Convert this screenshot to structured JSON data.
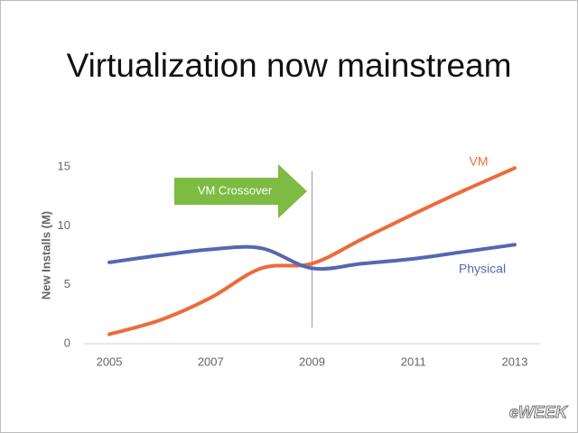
{
  "chart_data": {
    "type": "line",
    "title": "Virtualization now mainstream",
    "y_label": "New Installs (M)",
    "x": [
      2005,
      2006,
      2007,
      2008,
      2009,
      2010,
      2011,
      2012,
      2013
    ],
    "series": [
      {
        "name": "VM",
        "color": "#ed6a3c",
        "values": [
          0.8,
          2,
          3.9,
          6.4,
          6.8,
          8.9,
          11,
          13,
          14.9
        ]
      },
      {
        "name": "Physical",
        "color": "#5468b0",
        "values": [
          6.9,
          7.5,
          8,
          8.1,
          6.4,
          6.8,
          7.2,
          7.8,
          8.4
        ]
      }
    ],
    "xlim": [
      2004.5,
      2013.5
    ],
    "xticks": [
      2005,
      2007,
      2009,
      2011,
      2013
    ],
    "ylim": [
      0,
      15
    ],
    "yticks": [
      0,
      5,
      10,
      15
    ],
    "annotations": [
      {
        "text": "VM Crossover",
        "x": 2009
      }
    ],
    "watermark": "eWEEK"
  }
}
